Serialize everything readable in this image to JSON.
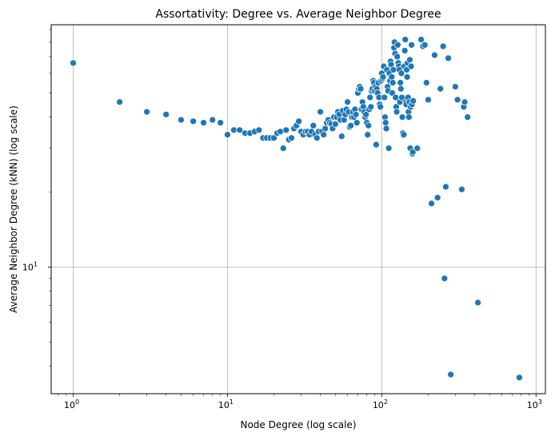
{
  "chart_data": {
    "type": "scatter",
    "title": "Assortativity: Degree vs. Average Neighbor Degree",
    "xlabel": "Node Degree (log scale)",
    "ylabel": "Average Neighbor Degree (kNN) (log scale)",
    "xscale": "log",
    "yscale": "log",
    "xlim": [
      0.72,
      1150
    ],
    "ylim": [
      3.1,
      94
    ],
    "grid": true,
    "marker_color": "#1f77b4",
    "x_ticks": [
      {
        "value": 1,
        "base": "10",
        "exp": "0"
      },
      {
        "value": 10,
        "base": "10",
        "exp": "1"
      },
      {
        "value": 100,
        "base": "10",
        "exp": "2"
      },
      {
        "value": 1000,
        "base": "10",
        "exp": "3"
      }
    ],
    "y_ticks": [
      {
        "value": 10,
        "base": "10",
        "exp": "1"
      }
    ],
    "points": [
      [
        1,
        66
      ],
      [
        2,
        46
      ],
      [
        3,
        42
      ],
      [
        4,
        41
      ],
      [
        5,
        39
      ],
      [
        6,
        38.5
      ],
      [
        7,
        38
      ],
      [
        8,
        39
      ],
      [
        9,
        38
      ],
      [
        10,
        34
      ],
      [
        11,
        35.5
      ],
      [
        12,
        35.5
      ],
      [
        13,
        34.5
      ],
      [
        14,
        34.5
      ],
      [
        15,
        35
      ],
      [
        16,
        35.5
      ],
      [
        17,
        33
      ],
      [
        18,
        33
      ],
      [
        19,
        33
      ],
      [
        20,
        33
      ],
      [
        21,
        34.5
      ],
      [
        22,
        35
      ],
      [
        23,
        30
      ],
      [
        24,
        35.5
      ],
      [
        25,
        32.5
      ],
      [
        26,
        33
      ],
      [
        27,
        36
      ],
      [
        28,
        37
      ],
      [
        29,
        38.5
      ],
      [
        30,
        35
      ],
      [
        31,
        34
      ],
      [
        32,
        35
      ],
      [
        33,
        35
      ],
      [
        34,
        34
      ],
      [
        35,
        35
      ],
      [
        36,
        37
      ],
      [
        37,
        34
      ],
      [
        38,
        33
      ],
      [
        39,
        35
      ],
      [
        40,
        42
      ],
      [
        41,
        35
      ],
      [
        42,
        34
      ],
      [
        43,
        36
      ],
      [
        44,
        38
      ],
      [
        45,
        39
      ],
      [
        46,
        38
      ],
      [
        47,
        37.5
      ],
      [
        48,
        36
      ],
      [
        49,
        40
      ],
      [
        50,
        37.5
      ],
      [
        51,
        40
      ],
      [
        52,
        42
      ],
      [
        53,
        41
      ],
      [
        54,
        39
      ],
      [
        55,
        33.5
      ],
      [
        56,
        42.5
      ],
      [
        57,
        39
      ],
      [
        58,
        41
      ],
      [
        59,
        43
      ],
      [
        60,
        46
      ],
      [
        61,
        42
      ],
      [
        62,
        36.5
      ],
      [
        63,
        37
      ],
      [
        64,
        40
      ],
      [
        65,
        42
      ],
      [
        66,
        40
      ],
      [
        67,
        43
      ],
      [
        68,
        41
      ],
      [
        69,
        38
      ],
      [
        70,
        50
      ],
      [
        71,
        52
      ],
      [
        72,
        53
      ],
      [
        73,
        52
      ],
      [
        74,
        43
      ],
      [
        75,
        46
      ],
      [
        76,
        44
      ],
      [
        77,
        42
      ],
      [
        78,
        40
      ],
      [
        79,
        41
      ],
      [
        80,
        38
      ],
      [
        81,
        34
      ],
      [
        82,
        37
      ],
      [
        83,
        43
      ],
      [
        84,
        48
      ],
      [
        85,
        44
      ],
      [
        86,
        51
      ],
      [
        87,
        52
      ],
      [
        88,
        56
      ],
      [
        89,
        55
      ],
      [
        90,
        51
      ],
      [
        91,
        53
      ],
      [
        92,
        31
      ],
      [
        93,
        52
      ],
      [
        94,
        50
      ],
      [
        95,
        55
      ],
      [
        96,
        48
      ],
      [
        97,
        45
      ],
      [
        98,
        44
      ],
      [
        99,
        56
      ],
      [
        100,
        60
      ],
      [
        101,
        57
      ],
      [
        102,
        58
      ],
      [
        103,
        64
      ],
      [
        104,
        48
      ],
      [
        105,
        40
      ],
      [
        106,
        38
      ],
      [
        107,
        36
      ],
      [
        108,
        62
      ],
      [
        109,
        53
      ],
      [
        110,
        51
      ],
      [
        111,
        30
      ],
      [
        112,
        60
      ],
      [
        113,
        56
      ],
      [
        114,
        67
      ],
      [
        115,
        65
      ],
      [
        116,
        58
      ],
      [
        117,
        50
      ],
      [
        118,
        55
      ],
      [
        119,
        62
      ],
      [
        120,
        76
      ],
      [
        121,
        80
      ],
      [
        122,
        72
      ],
      [
        123,
        48
      ],
      [
        124,
        44
      ],
      [
        125,
        42
      ],
      [
        126,
        70
      ],
      [
        127,
        78
      ],
      [
        128,
        66
      ],
      [
        129,
        64
      ],
      [
        130,
        62
      ],
      [
        131,
        46
      ],
      [
        132,
        55
      ],
      [
        133,
        52
      ],
      [
        134,
        60
      ],
      [
        135,
        48
      ],
      [
        136,
        40
      ],
      [
        137,
        34.5
      ],
      [
        138,
        33.8
      ],
      [
        139,
        34
      ],
      [
        140,
        64
      ],
      [
        141,
        74
      ],
      [
        142,
        82
      ],
      [
        143,
        46
      ],
      [
        144,
        45
      ],
      [
        145,
        62
      ],
      [
        146,
        58
      ],
      [
        147,
        66
      ],
      [
        148,
        48
      ],
      [
        149,
        42
      ],
      [
        150,
        40
      ],
      [
        151,
        46
      ],
      [
        152,
        68
      ],
      [
        153,
        30
      ],
      [
        154,
        44
      ],
      [
        155,
        64
      ],
      [
        156,
        78
      ],
      [
        157,
        45
      ],
      [
        158,
        28.5
      ],
      [
        159,
        29
      ],
      [
        160,
        46.5
      ],
      [
        170,
        30
      ],
      [
        180,
        82
      ],
      [
        185,
        77
      ],
      [
        190,
        78
      ],
      [
        195,
        55
      ],
      [
        200,
        47
      ],
      [
        210,
        18
      ],
      [
        220,
        71
      ],
      [
        230,
        19
      ],
      [
        240,
        52
      ],
      [
        250,
        77
      ],
      [
        255,
        9
      ],
      [
        260,
        21
      ],
      [
        270,
        69
      ],
      [
        280,
        3.7
      ],
      [
        300,
        53
      ],
      [
        310,
        47
      ],
      [
        330,
        20.5
      ],
      [
        340,
        44
      ],
      [
        345,
        46
      ],
      [
        360,
        40
      ],
      [
        420,
        7.2
      ],
      [
        780,
        3.6
      ]
    ]
  }
}
